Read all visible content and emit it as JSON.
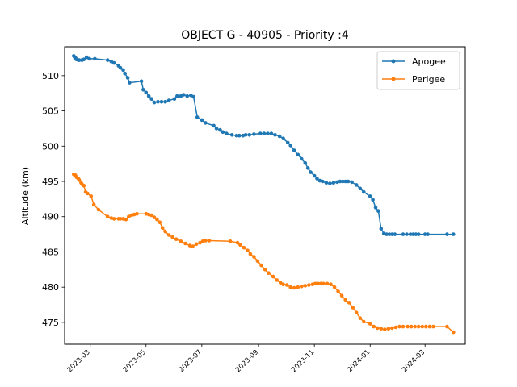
{
  "chart_data": {
    "type": "line",
    "title": "OBJECT G - 40905 - Priority :4",
    "xlabel": "",
    "ylabel": "Altitude (km)",
    "xlim": [
      "2023-02-01",
      "2024-04-14"
    ],
    "ylim": [
      471.9,
      514.1
    ],
    "x_ticks": [
      "2023-03",
      "2023-05",
      "2023-07",
      "2023-09",
      "2023-11",
      "2024-01",
      "2024-03"
    ],
    "y_ticks": [
      475,
      480,
      485,
      490,
      495,
      500,
      505,
      510
    ],
    "grid": false,
    "legend_position": "top-right",
    "series": [
      {
        "name": "Apogee",
        "color": "#1f77b4",
        "x": [
          "2023-02-11",
          "2023-02-12",
          "2023-02-13",
          "2023-02-14",
          "2023-02-16",
          "2023-02-17",
          "2023-02-20",
          "2023-02-22",
          "2023-02-25",
          "2023-02-28",
          "2023-03-06",
          "2023-03-20",
          "2023-03-24",
          "2023-03-27",
          "2023-04-01",
          "2023-04-03",
          "2023-04-06",
          "2023-04-08",
          "2023-04-11",
          "2023-04-13",
          "2023-04-26",
          "2023-04-28",
          "2023-05-01",
          "2023-05-04",
          "2023-05-07",
          "2023-05-10",
          "2023-05-14",
          "2023-05-18",
          "2023-05-22",
          "2023-05-26",
          "2023-06-01",
          "2023-06-04",
          "2023-06-08",
          "2023-06-11",
          "2023-06-15",
          "2023-06-19",
          "2023-06-22",
          "2023-06-26",
          "2023-07-01",
          "2023-07-05",
          "2023-07-14",
          "2023-07-17",
          "2023-07-21",
          "2023-07-24",
          "2023-07-28",
          "2023-08-03",
          "2023-08-08",
          "2023-08-11",
          "2023-08-15",
          "2023-08-18",
          "2023-08-22",
          "2023-08-27",
          "2023-09-03",
          "2023-09-07",
          "2023-09-11",
          "2023-09-15",
          "2023-09-19",
          "2023-09-24",
          "2023-09-28",
          "2023-10-03",
          "2023-10-06",
          "2023-10-10",
          "2023-10-14",
          "2023-10-18",
          "2023-10-22",
          "2023-10-25",
          "2023-10-28",
          "2023-11-01",
          "2023-11-04",
          "2023-11-07",
          "2023-11-10",
          "2023-11-14",
          "2023-11-18",
          "2023-11-22",
          "2023-11-26",
          "2023-11-29",
          "2023-12-02",
          "2023-12-05",
          "2023-12-08",
          "2023-12-12",
          "2023-12-17",
          "2023-12-21",
          "2023-12-25",
          "2024-01-01",
          "2024-01-04",
          "2024-01-07",
          "2024-01-10",
          "2024-01-13",
          "2024-01-16",
          "2024-01-19",
          "2024-01-22",
          "2024-01-25",
          "2024-01-28",
          "2024-02-06",
          "2024-02-10",
          "2024-02-14",
          "2024-02-17",
          "2024-02-20",
          "2024-02-23",
          "2024-03-01",
          "2024-03-04",
          "2024-03-25",
          "2024-04-01"
        ],
        "values": [
          512.8,
          512.6,
          512.5,
          512.3,
          512.2,
          512.2,
          512.2,
          512.3,
          512.6,
          512.4,
          512.4,
          512.2,
          512.0,
          511.8,
          511.4,
          511.1,
          510.8,
          510.3,
          509.7,
          509.0,
          509.2,
          508.0,
          507.6,
          507.1,
          506.7,
          506.2,
          506.3,
          506.3,
          506.3,
          506.5,
          506.7,
          507.1,
          507.1,
          507.3,
          507.1,
          507.2,
          507.0,
          504.1,
          503.7,
          503.3,
          502.9,
          502.5,
          502.3,
          502.0,
          501.8,
          501.6,
          501.5,
          501.5,
          501.5,
          501.6,
          501.6,
          501.7,
          501.8,
          501.8,
          501.8,
          501.8,
          501.6,
          501.4,
          501.1,
          500.5,
          500.1,
          499.4,
          498.8,
          498.2,
          497.6,
          496.9,
          496.3,
          495.8,
          495.4,
          495.1,
          495.0,
          494.8,
          494.7,
          494.8,
          494.9,
          495.0,
          495.0,
          495.0,
          495.0,
          494.9,
          494.5,
          494.0,
          493.5,
          492.9,
          492.4,
          491.3,
          490.8,
          488.3,
          487.6,
          487.5,
          487.5,
          487.5,
          487.5,
          487.5,
          487.5,
          487.5,
          487.5,
          487.5,
          487.5,
          487.5,
          487.5,
          487.5,
          487.5
        ]
      },
      {
        "name": "Perigee",
        "color": "#ff7f0e",
        "x": [
          "2023-02-11",
          "2023-02-12",
          "2023-02-13",
          "2023-02-14",
          "2023-02-16",
          "2023-02-17",
          "2023-02-19",
          "2023-02-20",
          "2023-02-22",
          "2023-02-24",
          "2023-02-26",
          "2023-03-02",
          "2023-03-05",
          "2023-03-10",
          "2023-03-20",
          "2023-03-24",
          "2023-03-27",
          "2023-04-01",
          "2023-04-03",
          "2023-04-06",
          "2023-04-09",
          "2023-04-12",
          "2023-04-15",
          "2023-04-18",
          "2023-04-21",
          "2023-05-01",
          "2023-05-04",
          "2023-05-07",
          "2023-05-10",
          "2023-05-13",
          "2023-05-16",
          "2023-05-19",
          "2023-05-22",
          "2023-05-26",
          "2023-05-30",
          "2023-06-03",
          "2023-06-08",
          "2023-06-13",
          "2023-06-18",
          "2023-06-21",
          "2023-06-25",
          "2023-06-29",
          "2023-07-02",
          "2023-07-05",
          "2023-07-09",
          "2023-08-01",
          "2023-08-09",
          "2023-08-12",
          "2023-08-16",
          "2023-08-20",
          "2023-08-23",
          "2023-08-27",
          "2023-08-31",
          "2023-09-04",
          "2023-09-08",
          "2023-09-12",
          "2023-09-17",
          "2023-09-21",
          "2023-09-25",
          "2023-09-28",
          "2023-10-02",
          "2023-10-06",
          "2023-10-10",
          "2023-10-14",
          "2023-10-18",
          "2023-10-22",
          "2023-10-26",
          "2023-10-30",
          "2023-11-02",
          "2023-11-05",
          "2023-11-08",
          "2023-11-11",
          "2023-11-15",
          "2023-11-19",
          "2023-11-23",
          "2023-11-27",
          "2023-12-01",
          "2023-12-05",
          "2023-12-09",
          "2023-12-13",
          "2023-12-17",
          "2023-12-21",
          "2023-12-25",
          "2024-01-01",
          "2024-01-05",
          "2024-01-09",
          "2024-01-13",
          "2024-01-17",
          "2024-01-21",
          "2024-01-25",
          "2024-01-29",
          "2024-02-02",
          "2024-02-06",
          "2024-02-11",
          "2024-02-15",
          "2024-02-19",
          "2024-02-23",
          "2024-02-27",
          "2024-03-02",
          "2024-03-06",
          "2024-03-10",
          "2024-03-25",
          "2024-04-01"
        ],
        "values": [
          496.0,
          496.0,
          495.8,
          495.6,
          495.4,
          495.2,
          494.8,
          494.6,
          494.4,
          493.5,
          493.3,
          492.9,
          491.7,
          491.0,
          490.0,
          489.8,
          489.7,
          489.7,
          489.7,
          489.7,
          489.6,
          490.0,
          490.2,
          490.3,
          490.4,
          490.4,
          490.3,
          490.2,
          489.9,
          489.6,
          489.2,
          488.4,
          487.9,
          487.4,
          487.1,
          486.8,
          486.5,
          486.2,
          485.9,
          485.8,
          486.1,
          486.3,
          486.5,
          486.6,
          486.6,
          486.5,
          486.3,
          486.0,
          485.6,
          485.2,
          484.7,
          484.3,
          483.7,
          483.1,
          482.5,
          482.0,
          481.5,
          481.0,
          480.6,
          480.4,
          480.3,
          480.0,
          479.9,
          480.0,
          480.1,
          480.2,
          480.3,
          480.4,
          480.5,
          480.5,
          480.5,
          480.5,
          480.5,
          480.4,
          480.0,
          479.4,
          478.8,
          478.2,
          477.8,
          477.1,
          476.4,
          475.6,
          475.1,
          474.8,
          474.4,
          474.2,
          474.1,
          474.0,
          474.1,
          474.2,
          474.3,
          474.4,
          474.4,
          474.4,
          474.4,
          474.4,
          474.4,
          474.4,
          474.4,
          474.4,
          474.4,
          474.4,
          473.6
        ]
      }
    ]
  }
}
